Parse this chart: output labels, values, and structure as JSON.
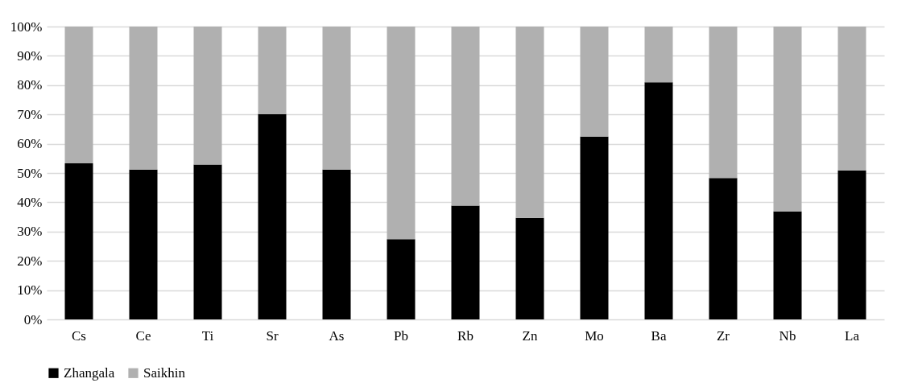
{
  "chart_data": {
    "type": "bar",
    "stacked": true,
    "categories": [
      "Cs",
      "Ce",
      "Ti",
      "Sr",
      "As",
      "Pb",
      "Rb",
      "Zn",
      "Mo",
      "Ba",
      "Zr",
      "Nb",
      "La"
    ],
    "series": [
      {
        "name": "Zhangala",
        "color": "#000000",
        "values": [
          53.3,
          51.2,
          52.9,
          70.1,
          51.2,
          27.4,
          38.9,
          34.7,
          62.4,
          81.0,
          48.3,
          36.9,
          50.9
        ]
      },
      {
        "name": "Saikhin",
        "color": "#b0b0b0",
        "values": [
          46.7,
          48.8,
          47.1,
          29.9,
          48.8,
          72.6,
          61.1,
          65.3,
          37.6,
          19.0,
          51.7,
          63.1,
          49.1
        ]
      }
    ],
    "ylim": [
      0,
      100
    ],
    "yticks": [
      {
        "value": 0,
        "label": "0%"
      },
      {
        "value": 10,
        "label": "10%"
      },
      {
        "value": 20,
        "label": "20%"
      },
      {
        "value": 30,
        "label": "30%"
      },
      {
        "value": 40,
        "label": "40%"
      },
      {
        "value": 50,
        "label": "50%"
      },
      {
        "value": 60,
        "label": "60%"
      },
      {
        "value": 70,
        "label": "70%"
      },
      {
        "value": 80,
        "label": "80%"
      },
      {
        "value": 90,
        "label": "90%"
      },
      {
        "value": 100,
        "label": "100%"
      }
    ],
    "grid": "y",
    "legend": "bottom"
  }
}
